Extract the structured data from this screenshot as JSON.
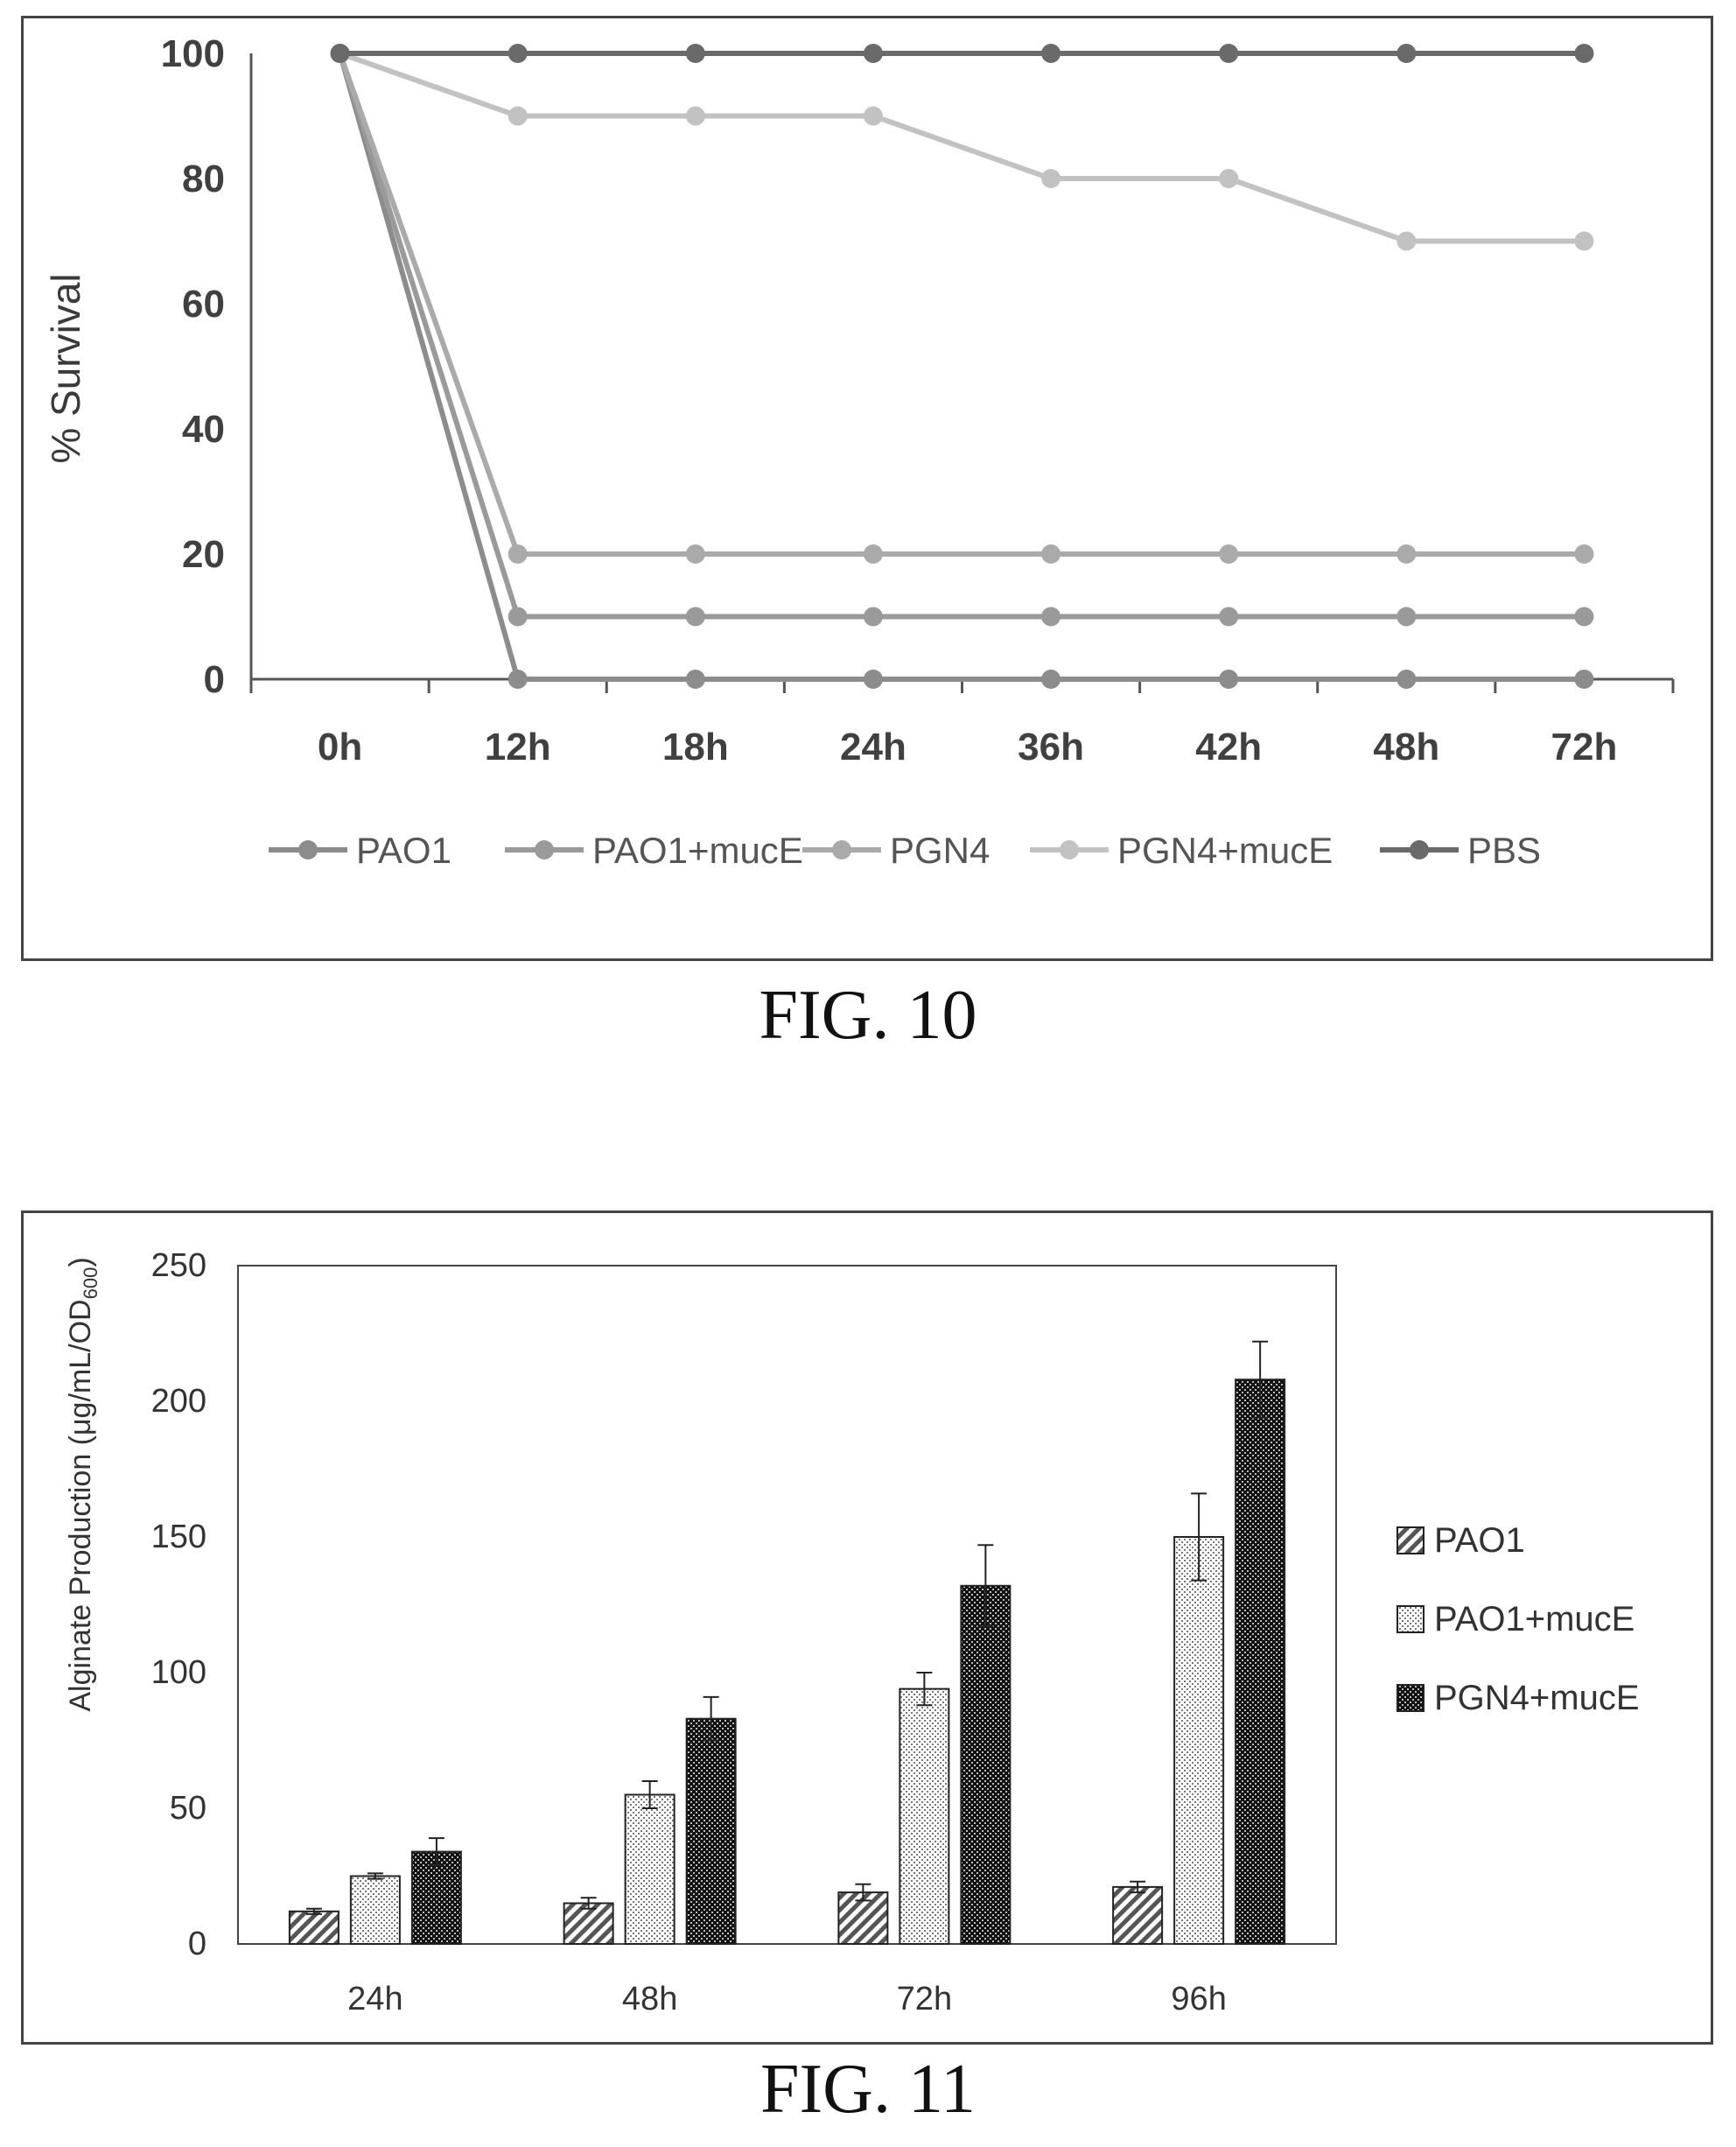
{
  "figures": {
    "fig10_caption": "FIG. 10",
    "fig11_caption": "FIG. 11"
  },
  "chart_data": [
    {
      "type": "line",
      "title": "",
      "xlabel": "",
      "ylabel": "% Survival",
      "categories": [
        "0h",
        "12h",
        "18h",
        "24h",
        "36h",
        "42h",
        "48h",
        "72h"
      ],
      "ylim": [
        0,
        100
      ],
      "yticks": [
        "0",
        "20",
        "40",
        "60",
        "80",
        "100"
      ],
      "grid": false,
      "legend_position": "bottom",
      "series": [
        {
          "name": "PAO1",
          "color": "#8c8c8c",
          "values": [
            100,
            0,
            0,
            0,
            0,
            0,
            0,
            0
          ]
        },
        {
          "name": "PAO1+mucE",
          "color": "#9a9a9a",
          "values": [
            100,
            10,
            10,
            10,
            10,
            10,
            10,
            10
          ]
        },
        {
          "name": "PGN4",
          "color": "#aaaaaa",
          "values": [
            100,
            20,
            20,
            20,
            20,
            20,
            20,
            20
          ]
        },
        {
          "name": "PGN4+mucE",
          "color": "#c2c2c2",
          "values": [
            100,
            90,
            90,
            90,
            80,
            80,
            70,
            70
          ]
        },
        {
          "name": "PBS",
          "color": "#6a6a6a",
          "values": [
            100,
            100,
            100,
            100,
            100,
            100,
            100,
            100
          ]
        }
      ]
    },
    {
      "type": "bar",
      "title": "",
      "xlabel": "",
      "ylabel": "Alginate Production (μg/mL/OD600)",
      "categories": [
        "24h",
        "48h",
        "72h",
        "96h"
      ],
      "ylim": [
        0,
        250
      ],
      "yticks": [
        "0",
        "50",
        "100",
        "150",
        "200",
        "250"
      ],
      "grid": false,
      "legend_position": "right",
      "series": [
        {
          "name": "PAO1",
          "pattern": "hatch",
          "values": [
            12,
            15,
            19,
            21
          ],
          "errors": [
            1,
            2,
            3,
            2
          ]
        },
        {
          "name": "PAO1+mucE",
          "pattern": "light-dots",
          "values": [
            25,
            55,
            94,
            150
          ],
          "errors": [
            1,
            5,
            6,
            16
          ]
        },
        {
          "name": "PGN4+mucE",
          "pattern": "dark-checker",
          "values": [
            34,
            83,
            132,
            208
          ],
          "errors": [
            5,
            8,
            15,
            14
          ]
        }
      ]
    }
  ]
}
